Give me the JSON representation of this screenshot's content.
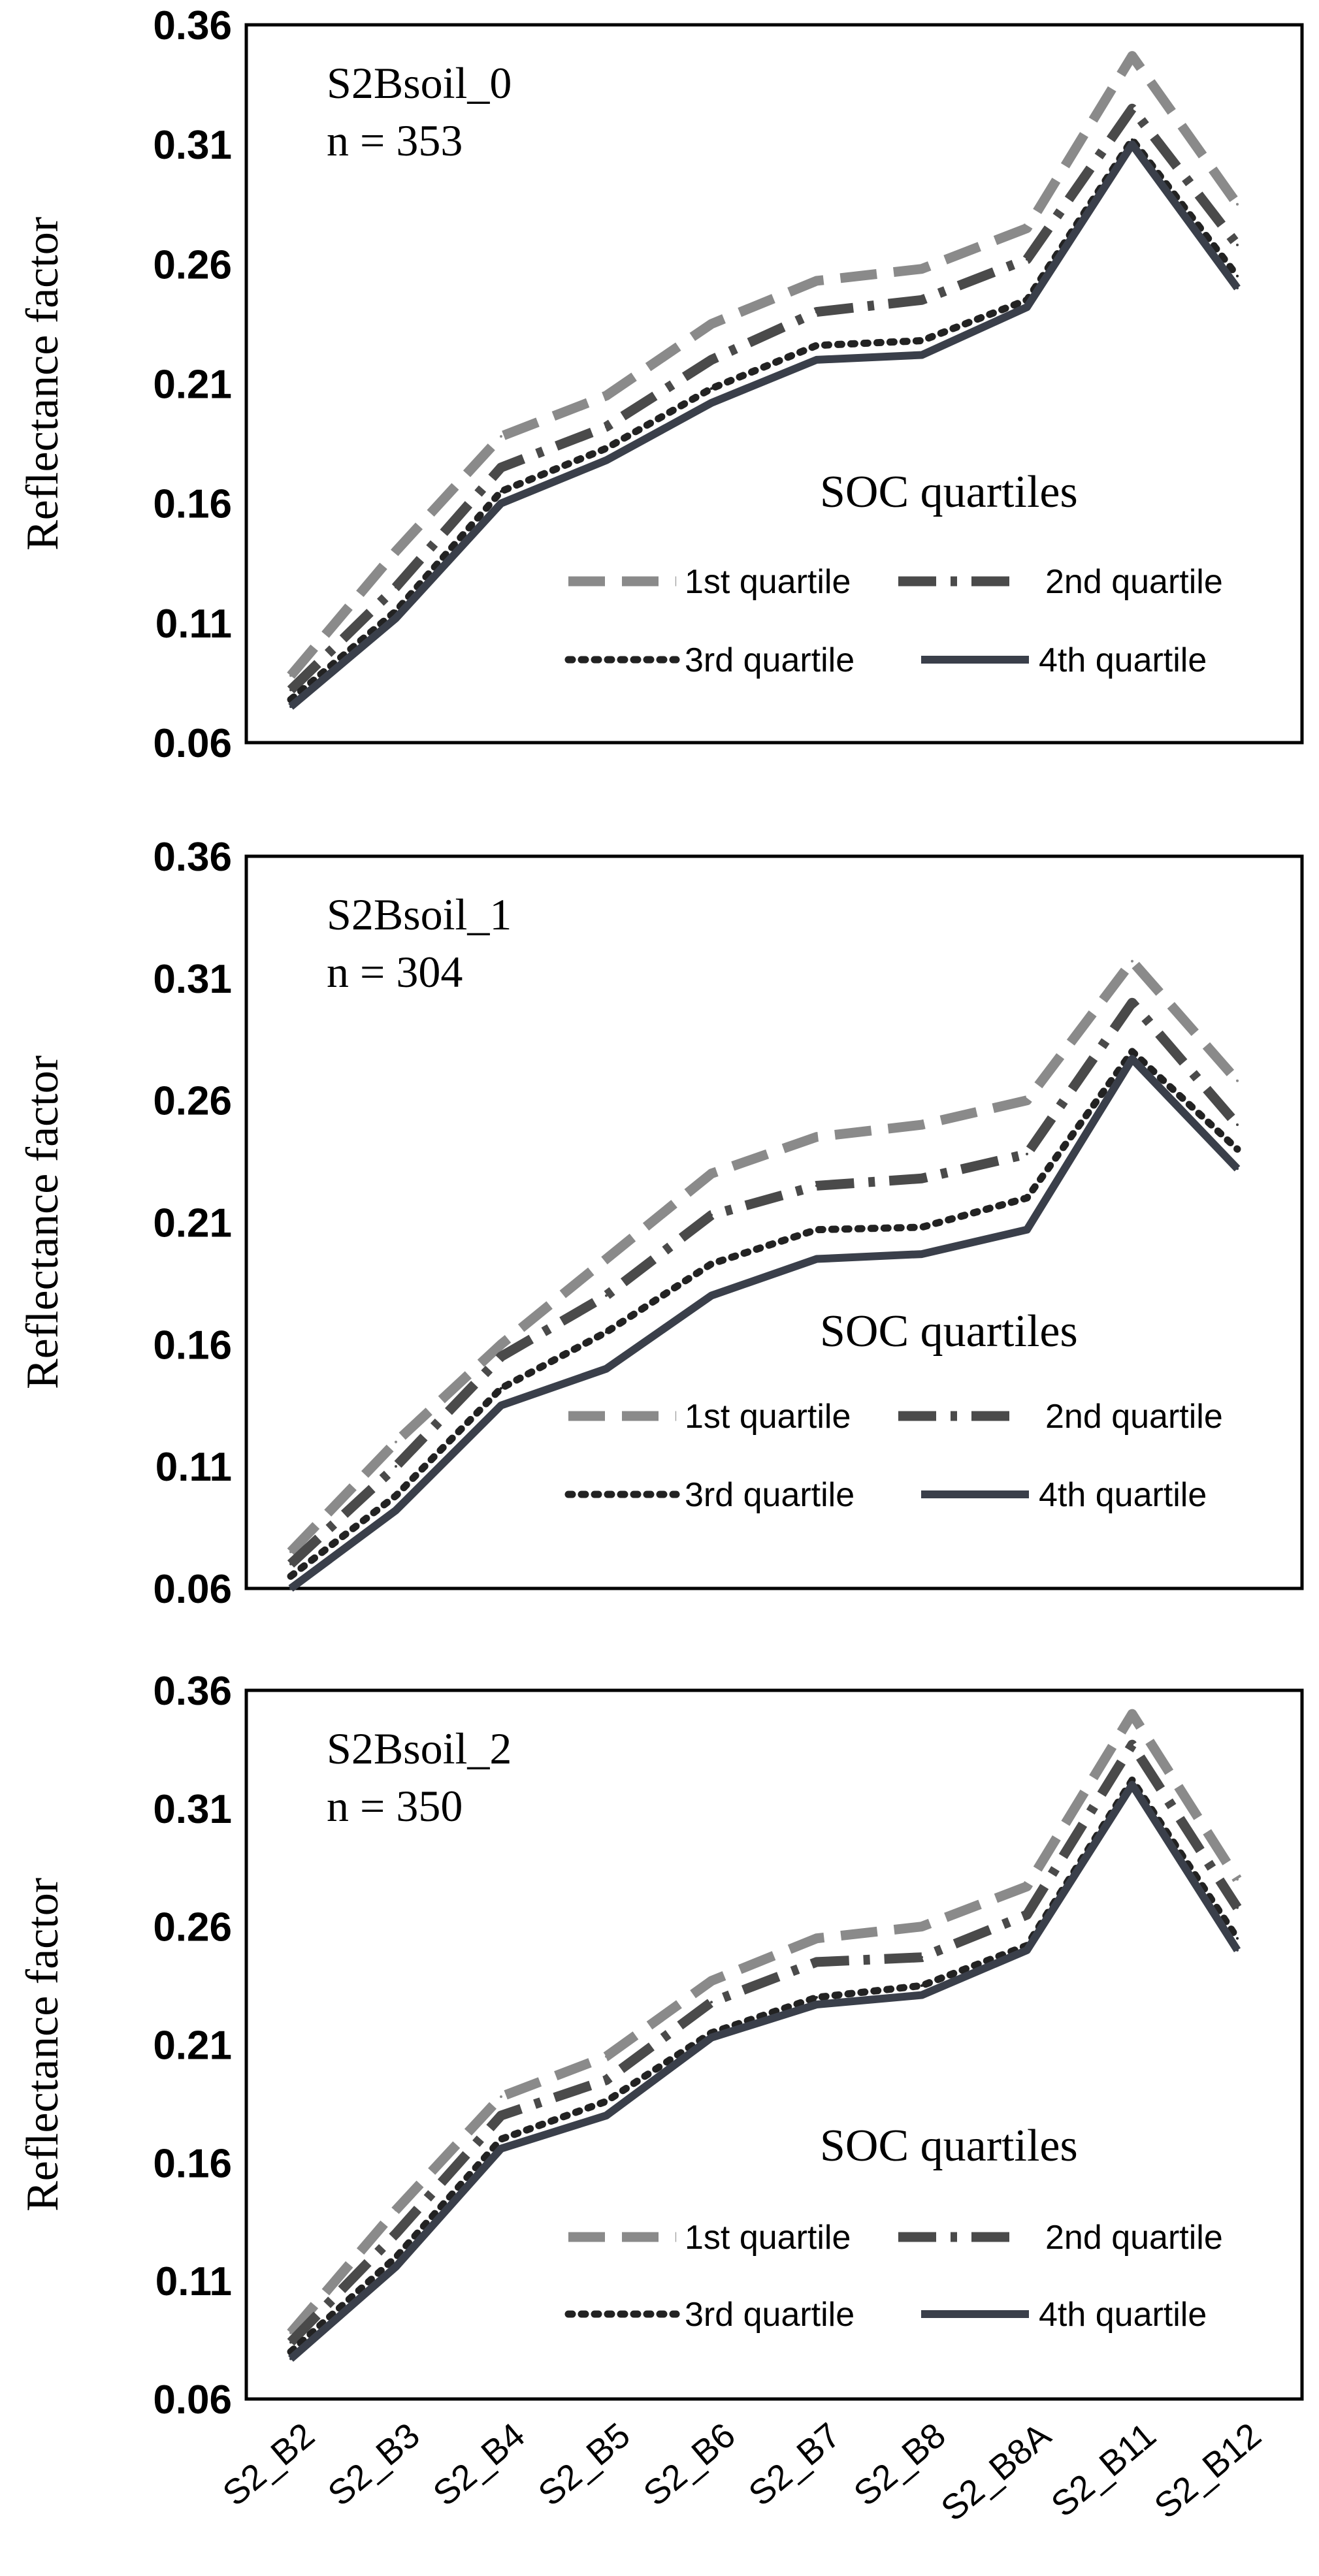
{
  "chart_data": [
    {
      "type": "line",
      "panel_title": "S2Bsoil_0",
      "n_label": "n = 353",
      "ylabel": "Reflectance factor",
      "ylim": [
        0.06,
        0.36
      ],
      "yticks": [
        "0.36",
        "0.31",
        "0.26",
        "0.21",
        "0.16",
        "0.11",
        "0.06"
      ],
      "legend_title": "SOC quartiles",
      "categories": [
        "S2_B2",
        "S2_B3",
        "S2_B4",
        "S2_B5",
        "S2_B6",
        "S2_B7",
        "S2_B8",
        "S2_B8A",
        "S2_B11",
        "S2_B12"
      ],
      "series": [
        {
          "name": "1st quartile",
          "values": [
            0.088,
            0.14,
            0.188,
            0.205,
            0.235,
            0.253,
            0.258,
            0.275,
            0.347,
            0.285
          ]
        },
        {
          "name": "2nd quartile",
          "values": [
            0.082,
            0.125,
            0.175,
            0.192,
            0.22,
            0.24,
            0.245,
            0.262,
            0.325,
            0.268
          ]
        },
        {
          "name": "3rd quartile",
          "values": [
            0.078,
            0.115,
            0.165,
            0.183,
            0.208,
            0.226,
            0.228,
            0.245,
            0.312,
            0.255
          ]
        },
        {
          "name": "4th quartile",
          "values": [
            0.075,
            0.112,
            0.16,
            0.178,
            0.202,
            0.22,
            0.222,
            0.242,
            0.31,
            0.25
          ]
        }
      ]
    },
    {
      "type": "line",
      "panel_title": "S2Bsoil_1",
      "n_label": "n = 304",
      "ylabel": "Reflectance factor",
      "ylim": [
        0.06,
        0.36
      ],
      "yticks": [
        "0.36",
        "0.31",
        "0.26",
        "0.21",
        "0.16",
        "0.11",
        "0.06"
      ],
      "legend_title": "SOC quartiles",
      "categories": [
        "S2_B2",
        "S2_B3",
        "S2_B4",
        "S2_B5",
        "S2_B6",
        "S2_B7",
        "S2_B8",
        "S2_B8A",
        "S2_B11",
        "S2_B12"
      ],
      "series": [
        {
          "name": "1st quartile",
          "values": [
            0.075,
            0.12,
            0.16,
            0.195,
            0.23,
            0.245,
            0.25,
            0.26,
            0.317,
            0.268
          ]
        },
        {
          "name": "2nd quartile",
          "values": [
            0.07,
            0.11,
            0.155,
            0.18,
            0.213,
            0.225,
            0.228,
            0.238,
            0.3,
            0.25
          ]
        },
        {
          "name": "3rd quartile",
          "values": [
            0.065,
            0.098,
            0.142,
            0.165,
            0.193,
            0.207,
            0.208,
            0.22,
            0.28,
            0.24
          ]
        },
        {
          "name": "4th quartile",
          "values": [
            0.06,
            0.092,
            0.135,
            0.15,
            0.18,
            0.195,
            0.197,
            0.207,
            0.277,
            0.232
          ]
        }
      ]
    },
    {
      "type": "line",
      "panel_title": "S2Bsoil_2",
      "n_label": "n = 350",
      "ylabel": "Reflectance factor",
      "ylim": [
        0.06,
        0.36
      ],
      "yticks": [
        "0.36",
        "0.31",
        "0.26",
        "0.21",
        "0.16",
        "0.11",
        "0.06"
      ],
      "legend_title": "SOC quartiles",
      "categories": [
        "S2_B2",
        "S2_B3",
        "S2_B4",
        "S2_B5",
        "S2_B6",
        "S2_B7",
        "S2_B8",
        "S2_B8A",
        "S2_B11",
        "S2_B12"
      ],
      "series": [
        {
          "name": "1st quartile",
          "values": [
            0.088,
            0.14,
            0.188,
            0.205,
            0.237,
            0.255,
            0.26,
            0.277,
            0.35,
            0.28
          ]
        },
        {
          "name": "2nd quartile",
          "values": [
            0.084,
            0.13,
            0.18,
            0.195,
            0.228,
            0.245,
            0.247,
            0.265,
            0.337,
            0.268
          ]
        },
        {
          "name": "3rd quartile",
          "values": [
            0.08,
            0.12,
            0.17,
            0.186,
            0.215,
            0.23,
            0.235,
            0.252,
            0.322,
            0.255
          ]
        },
        {
          "name": "4th quartile",
          "values": [
            0.077,
            0.116,
            0.166,
            0.18,
            0.213,
            0.227,
            0.231,
            0.25,
            0.32,
            0.25
          ]
        }
      ]
    }
  ],
  "colors": {
    "1st quartile": "#8a8a8a",
    "2nd quartile": "#4a4a4a",
    "3rd quartile": "#222222",
    "4th quartile": "#3a3f4a",
    "frame": "#000000",
    "text": "#000000"
  }
}
